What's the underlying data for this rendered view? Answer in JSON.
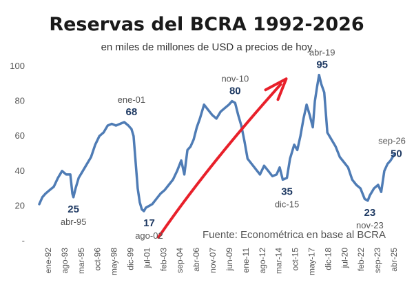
{
  "chart_data": {
    "type": "line",
    "title": "Reservas del BCRA 1992-2026",
    "subtitle": "en miles de millones de USD a precios de hoy",
    "source": "Fuente: Econométrica en base al BCRA",
    "ylim": [
      0,
      100
    ],
    "y_ticks": [
      "100",
      "80",
      "60",
      "40",
      "20",
      "-"
    ],
    "x_tick_labels": [
      "ene-92",
      "ago-93",
      "mar-95",
      "oct-96",
      "may-98",
      "dic-99",
      "jul-01",
      "feb-03",
      "sep-04",
      "abr-06",
      "nov-07",
      "jun-09",
      "ene-11",
      "ago-12",
      "mar-14",
      "oct-15",
      "may-17",
      "dic-18",
      "jul-20",
      "feb-22",
      "sep-23",
      "abr-25"
    ],
    "line_color": "#4f7cb5",
    "arrow_color": "#e8202a",
    "series": [
      {
        "x": [
          1992.0,
          1992.3,
          1992.6,
          1993.0,
          1993.4,
          1993.8,
          1994.2,
          1994.6,
          1995.0,
          1995.2,
          1995.3,
          1995.5,
          1995.8,
          1996.2,
          1996.6,
          1997.0,
          1997.4,
          1997.8,
          1998.2,
          1998.6,
          1999.0,
          1999.4,
          1999.8,
          2000.2,
          2000.6,
          2000.9,
          2001.1,
          2001.3,
          2001.5,
          2001.7,
          2001.9,
          2002.1,
          2002.3,
          2002.6,
          2002.9,
          2003.3,
          2003.7,
          2004.1,
          2004.5,
          2004.9,
          2005.3,
          2005.7,
          2006.0,
          2006.3,
          2006.6,
          2006.9,
          2007.2,
          2007.5,
          2007.9,
          2008.3,
          2008.7,
          2009.1,
          2009.5,
          2009.9,
          2010.3,
          2010.6,
          2010.9,
          2011.2,
          2011.5,
          2011.8,
          2012.1,
          2012.5,
          2012.9,
          2013.3,
          2013.7,
          2014.1,
          2014.5,
          2014.9,
          2015.2,
          2015.5,
          2015.9,
          2016.2,
          2016.6,
          2016.9,
          2017.2,
          2017.5,
          2017.8,
          2018.1,
          2018.4,
          2018.6,
          2018.8,
          2019.0,
          2019.2,
          2019.5,
          2019.8,
          2020.2,
          2020.6,
          2021.0,
          2021.4,
          2021.8,
          2022.2,
          2022.6,
          2023.0,
          2023.4,
          2023.7,
          2023.9,
          2024.3,
          2024.7,
          2025.0,
          2025.3,
          2025.6,
          2025.9,
          2026.1,
          2026.3
        ],
        "y": [
          21,
          25,
          27,
          29,
          31,
          36,
          40,
          38,
          38,
          27,
          25,
          30,
          36,
          40,
          44,
          48,
          55,
          60,
          62,
          66,
          67,
          66,
          67,
          68,
          66,
          64,
          60,
          45,
          30,
          22,
          18,
          17,
          19,
          20,
          21,
          24,
          27,
          29,
          32,
          35,
          40,
          46,
          38,
          52,
          54,
          58,
          65,
          70,
          78,
          75,
          72,
          70,
          74,
          76,
          78,
          80,
          79,
          72,
          66,
          57,
          47,
          44,
          41,
          38,
          43,
          40,
          37,
          38,
          42,
          35,
          36,
          47,
          55,
          52,
          60,
          70,
          78,
          72,
          65,
          80,
          88,
          95,
          90,
          85,
          62,
          58,
          54,
          48,
          45,
          42,
          35,
          32,
          30,
          24,
          23,
          26,
          30,
          32,
          28,
          40,
          44,
          46,
          48,
          50
        ]
      }
    ],
    "annotations": [
      {
        "value": "25",
        "label": "abr-95",
        "x": 1995.3,
        "y": 25,
        "pos": "below"
      },
      {
        "value": "68",
        "label": "ene-01",
        "x": 2000.9,
        "y": 68,
        "pos": "above"
      },
      {
        "value": "17",
        "label": "ago-02",
        "x": 2002.6,
        "y": 17,
        "pos": "below"
      },
      {
        "value": "80",
        "label": "nov-10",
        "x": 2010.9,
        "y": 80,
        "pos": "above"
      },
      {
        "value": "35",
        "label": "dic-15",
        "x": 2015.9,
        "y": 35,
        "pos": "below"
      },
      {
        "value": "95",
        "label": "abr-19",
        "x": 2019.3,
        "y": 95,
        "pos": "above"
      },
      {
        "value": "23",
        "label": "nov-23",
        "x": 2023.9,
        "y": 23,
        "pos": "below"
      },
      {
        "value": "50",
        "label": "sep-26",
        "x": 2026.7,
        "y": 50,
        "pos": "right"
      }
    ],
    "arrow": {
      "from": [
        2003.5,
        2
      ],
      "to": [
        2015.7,
        92
      ]
    }
  }
}
